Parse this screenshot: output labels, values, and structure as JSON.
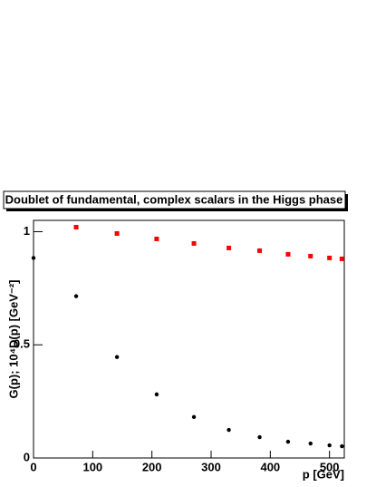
{
  "chart_data": {
    "type": "scatter",
    "title": "Doublet of fundamental, complex scalars in the Higgs phase",
    "x_label": "p [GeV]",
    "y_label": "G(p); 10⁴D(p) [GeV⁻²]",
    "xlim": [
      0,
      525
    ],
    "xticks": [
      0,
      100,
      200,
      300,
      400,
      500
    ],
    "ylim": [
      0,
      1.05
    ],
    "yticks": [
      0,
      0.5,
      1
    ],
    "series": [
      {
        "color": "#000000",
        "marker": "circle",
        "x": [
          0,
          72,
          141,
          208,
          271,
          330,
          382,
          430,
          468,
          500,
          521
        ],
        "values": [
          0.884,
          0.715,
          0.446,
          0.281,
          0.181,
          0.124,
          0.092,
          0.072,
          0.064,
          0.056,
          0.052
        ]
      },
      {
        "color": "#ff0000",
        "marker": "square",
        "x": [
          72,
          141,
          208,
          271,
          330,
          382,
          430,
          468,
          500,
          521
        ],
        "values": [
          1.02,
          0.992,
          0.968,
          0.948,
          0.928,
          0.916,
          0.9,
          0.892,
          0.884,
          0.88
        ]
      }
    ]
  }
}
